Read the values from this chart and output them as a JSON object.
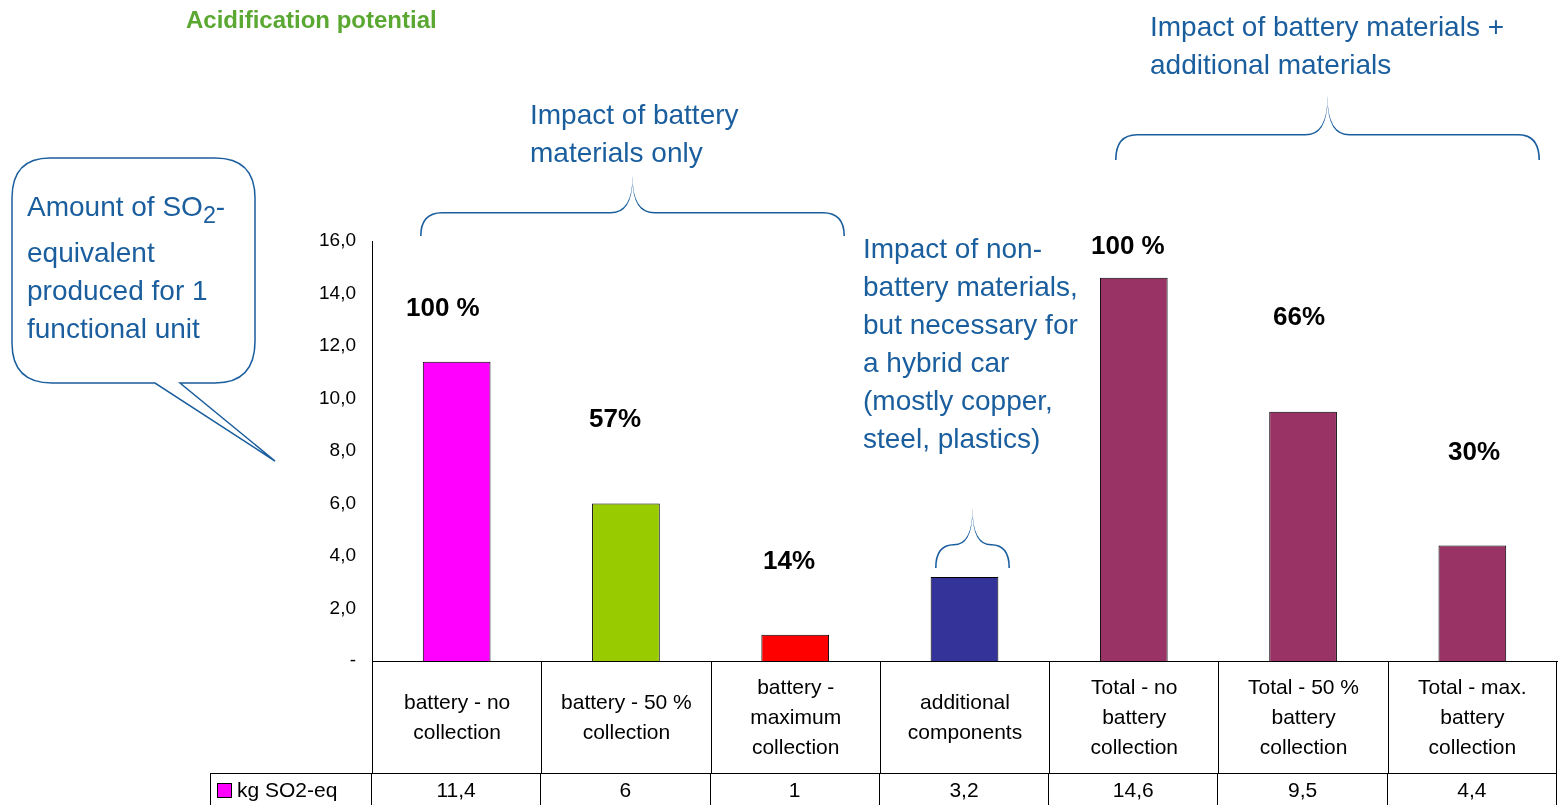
{
  "chart_data": {
    "type": "bar",
    "title": "Acidification potential",
    "ylabel": "Amount of SO$_{2}$-equivalent produced for 1 functional unit",
    "categories": [
      "battery - no collection",
      "battery - 50 % collection",
      "battery - maximum collection",
      "additional components",
      "Total - no battery collection",
      "Total - 50 % battery collection",
      "Total - max. battery collection"
    ],
    "series": [
      {
        "name": "kg SO2-eq",
        "colors": [
          "#ff00ff",
          "#99cc00",
          "#ff0000",
          "#333399",
          "#993366",
          "#993366",
          "#993366"
        ],
        "values": [
          11.4,
          6,
          1,
          3.2,
          14.6,
          9.5,
          4.4
        ],
        "value_labels": [
          "11,4",
          "6",
          "1",
          "3,2",
          "14,6",
          "9,5",
          "4,4"
        ]
      }
    ],
    "ylim": [
      0,
      16
    ],
    "yticks": [
      {
        "value": 0,
        "label": "-"
      },
      {
        "value": 2,
        "label": "2,0"
      },
      {
        "value": 4,
        "label": "4,0"
      },
      {
        "value": 6,
        "label": "6,0"
      },
      {
        "value": 8,
        "label": "8,0"
      },
      {
        "value": 10,
        "label": "10,0"
      },
      {
        "value": 12,
        "label": "12,0"
      },
      {
        "value": 14,
        "label": "14,0"
      },
      {
        "value": 16,
        "label": "16,0"
      }
    ],
    "grid": false,
    "legend": "bottom",
    "annotations": [
      "Impact of battery materials only",
      "Impact of non-battery materials, but necessary for a hybrid car (mostly copper, steel, plastics)",
      "Impact of battery materials + additional materials",
      "100 %",
      "57%",
      "14%",
      "100 %",
      "66%",
      "30%"
    ]
  }
}
